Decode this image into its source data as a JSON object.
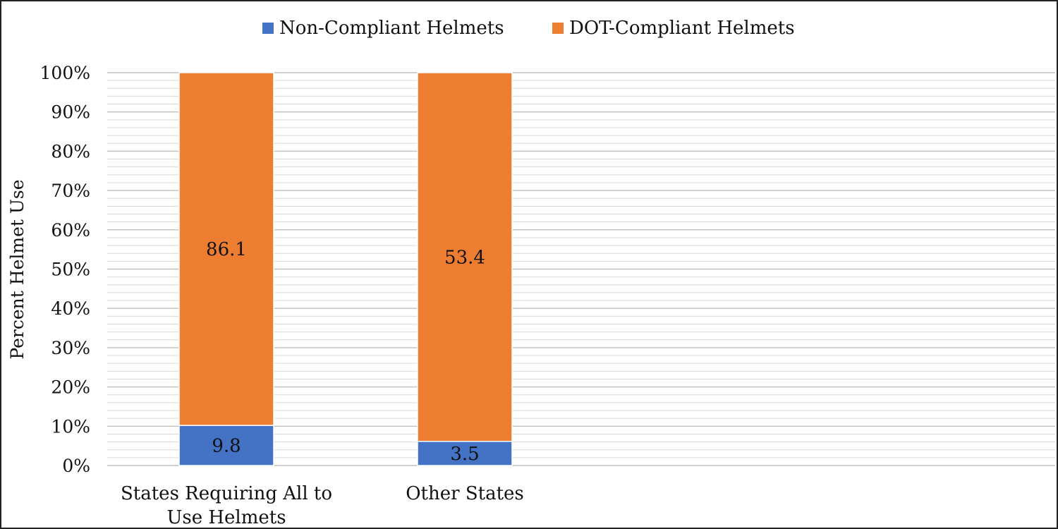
{
  "chart_data": {
    "type": "bar",
    "stacked": "percent",
    "categories": [
      "States Requiring All to Use Helmets",
      "Other States"
    ],
    "category_lines": [
      [
        "States Requiring All to",
        "Use Helmets"
      ],
      [
        "Other States"
      ]
    ],
    "series": [
      {
        "name": "Non-Compliant Helmets",
        "values": [
          9.8,
          3.5
        ],
        "labels": [
          "9.8",
          "3.5"
        ],
        "color": "#4472C4"
      },
      {
        "name": "DOT-Compliant Helmets",
        "values": [
          86.1,
          53.4
        ],
        "labels": [
          "86.1",
          "53.4"
        ],
        "color": "#ED7D31"
      }
    ],
    "ylabel": "Percent Helmet Use",
    "xlabel": "",
    "ylim": [
      0,
      100
    ],
    "yticks": [
      "0%",
      "10%",
      "20%",
      "30%",
      "40%",
      "50%",
      "60%",
      "70%",
      "80%",
      "90%",
      "100%"
    ],
    "legend_position": "top-center",
    "grid": true,
    "gridline_color": "#D9D9D9"
  }
}
